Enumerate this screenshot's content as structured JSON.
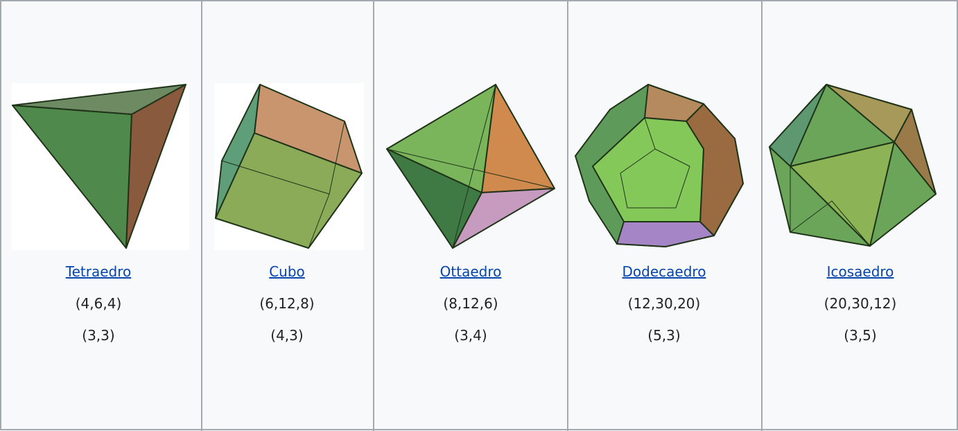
{
  "table": {
    "cells": [
      {
        "name": "Tetraedro",
        "counts": "(4,6,4)",
        "schlafli": "(3,3)"
      },
      {
        "name": "Cubo",
        "counts": "(6,12,8)",
        "schlafli": "(4,3)"
      },
      {
        "name": "Ottaedro",
        "counts": "(8,12,6)",
        "schlafli": "(3,4)"
      },
      {
        "name": "Dodecaedro",
        "counts": "(12,30,20)",
        "schlafli": "(5,3)"
      },
      {
        "name": "Icosaedro",
        "counts": "(20,30,12)",
        "schlafli": "(3,5)"
      }
    ]
  }
}
